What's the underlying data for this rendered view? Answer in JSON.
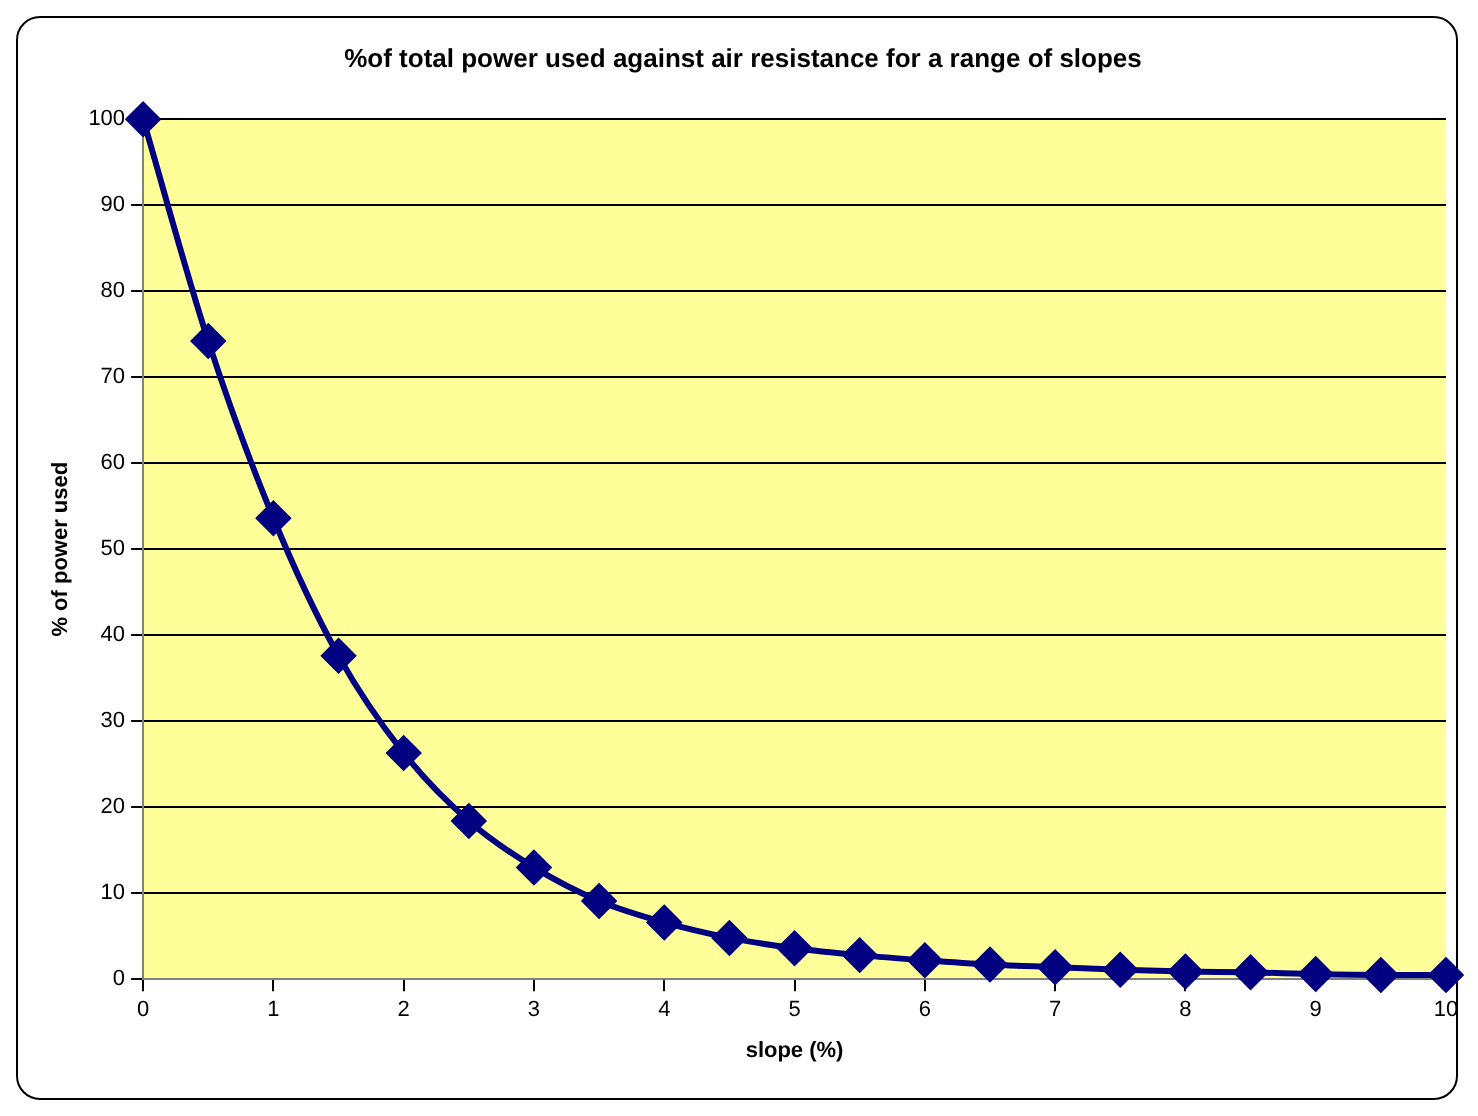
{
  "chart_data": {
    "type": "line",
    "title": "%of total power used against air resistance for a range of slopes",
    "xlabel": "slope (%)",
    "ylabel": "% of power used",
    "x": [
      0,
      0.5,
      1,
      1.5,
      2,
      2.5,
      3,
      3.5,
      4,
      4.5,
      5,
      5.5,
      6,
      6.5,
      7,
      7.5,
      8,
      8.5,
      9,
      9.5,
      10
    ],
    "series": [
      {
        "color": "#000080",
        "values": [
          100,
          74.2,
          53.6,
          37.6,
          26.3,
          18.4,
          13,
          9.1,
          6.6,
          4.8,
          3.6,
          2.8,
          2.2,
          1.7,
          1.4,
          1.1,
          0.9,
          0.8,
          0.6,
          0.5,
          0.5
        ]
      }
    ],
    "xlim": [
      0,
      10
    ],
    "xticks": [
      0,
      1,
      2,
      3,
      4,
      5,
      6,
      7,
      8,
      9,
      10
    ],
    "ylim": [
      0,
      100
    ],
    "yticks": [
      0,
      10,
      20,
      30,
      40,
      50,
      60,
      70,
      80,
      90,
      100
    ],
    "grid": "y",
    "legend": false,
    "marker": "diamond",
    "line_style": "solid"
  }
}
